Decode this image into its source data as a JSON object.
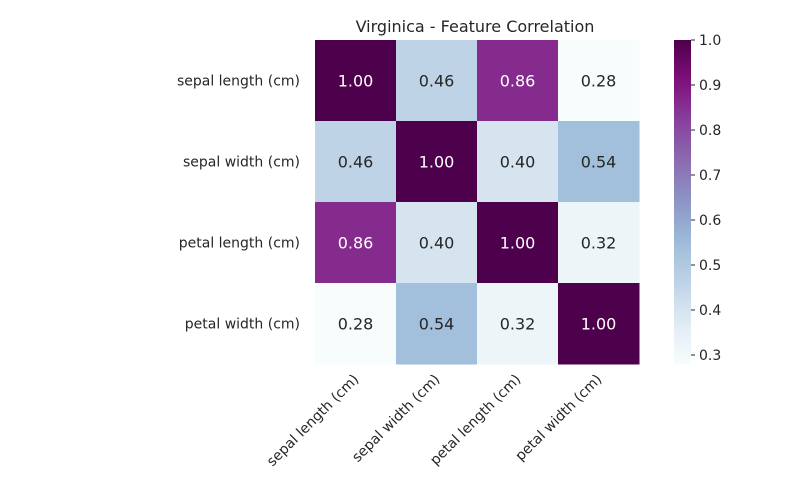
{
  "chart_data": {
    "type": "heatmap",
    "title": "Virginica - Feature Correlation",
    "rows": [
      "sepal length (cm)",
      "sepal width (cm)",
      "petal length (cm)",
      "petal width (cm)"
    ],
    "columns": [
      "sepal length (cm)",
      "sepal width (cm)",
      "petal length (cm)",
      "petal width (cm)"
    ],
    "values": [
      [
        1.0,
        0.46,
        0.86,
        0.28
      ],
      [
        0.46,
        1.0,
        0.4,
        0.54
      ],
      [
        0.86,
        0.4,
        1.0,
        0.32
      ],
      [
        0.28,
        0.54,
        0.32,
        1.0
      ]
    ],
    "value_labels": [
      [
        "1.00",
        "0.46",
        "0.86",
        "0.28"
      ],
      [
        "0.46",
        "1.00",
        "0.40",
        "0.54"
      ],
      [
        "0.86",
        "0.40",
        "1.00",
        "0.32"
      ],
      [
        "0.28",
        "0.54",
        "0.32",
        "1.00"
      ]
    ],
    "colormap": "BuPu",
    "vmin": 0.28,
    "vmax": 1.0,
    "colorbar": {
      "ticks": [
        0.3,
        0.4,
        0.5,
        0.6,
        0.7,
        0.8,
        0.9,
        1.0
      ],
      "tick_labels": [
        "0.3",
        "0.4",
        "0.5",
        "0.6",
        "0.7",
        "0.8",
        "0.9",
        "1.0"
      ]
    },
    "grid": false
  }
}
